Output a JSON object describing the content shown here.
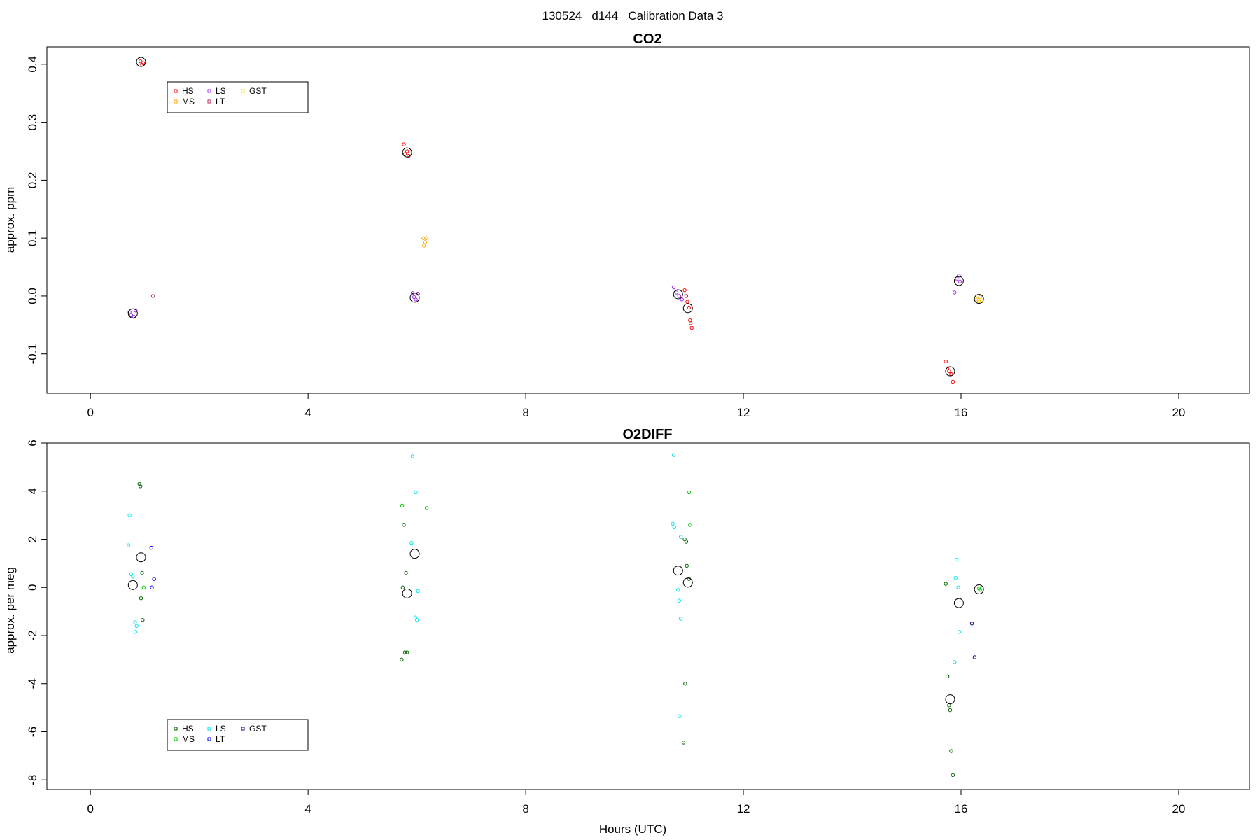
{
  "page": {
    "title": "130524   d144   Calibration Data 3",
    "xlabel": "Hours (UTC)"
  },
  "chart_data": [
    {
      "type": "scatter",
      "title": "CO2",
      "xlabel": "",
      "ylabel": "approx. ppm",
      "xlim": [
        -0.8,
        21.3
      ],
      "ylim": [
        -0.168,
        0.43
      ],
      "x_ticks": [
        0,
        4,
        8,
        12,
        16,
        20
      ],
      "y_ticks": [
        -0.1,
        0.0,
        0.1,
        0.2,
        0.3,
        0.4
      ],
      "y_tick_labels": [
        "-0.1",
        "0.0",
        "0.1",
        "0.2",
        "0.3",
        "0.4"
      ],
      "legend": {
        "position": "top-left",
        "entries": [
          {
            "label": "HS",
            "color": "#ff0000"
          },
          {
            "label": "MS",
            "color": "#ffa500"
          },
          {
            "label": "GST",
            "color": "#ffd700"
          },
          {
            "label": "LS",
            "color": "#a020f0"
          },
          {
            "label": "LT",
            "color": "#b03060"
          }
        ]
      },
      "series": [
        {
          "name": "HS",
          "color": "#ff0000",
          "points": [
            [
              0.92,
              0.405
            ],
            [
              0.95,
              0.399
            ],
            [
              0.97,
              0.402
            ],
            [
              5.76,
              0.262
            ],
            [
              5.78,
              0.245
            ],
            [
              5.82,
              0.25
            ],
            [
              5.85,
              0.242
            ],
            [
              10.92,
              0.01
            ],
            [
              10.95,
              0.0
            ],
            [
              10.97,
              -0.01
            ],
            [
              11.0,
              -0.02
            ],
            [
              11.02,
              -0.042
            ],
            [
              11.05,
              -0.055
            ],
            [
              11.03,
              -0.047
            ],
            [
              15.72,
              -0.113
            ],
            [
              15.75,
              -0.125
            ],
            [
              15.78,
              -0.13
            ],
            [
              15.82,
              -0.135
            ],
            [
              15.85,
              -0.148
            ]
          ]
        },
        {
          "name": "MS",
          "color": "#ffa500",
          "points": [
            [
              6.12,
              0.1
            ],
            [
              6.15,
              0.093
            ],
            [
              6.17,
              0.1
            ],
            [
              6.13,
              0.087
            ],
            [
              16.3,
              -0.006
            ],
            [
              16.35,
              -0.002
            ],
            [
              16.38,
              -0.009
            ]
          ]
        },
        {
          "name": "GST",
          "color": "#ffd700",
          "points": [
            [
              16.28,
              -0.004
            ],
            [
              16.33,
              -0.009
            ]
          ]
        },
        {
          "name": "LS",
          "color": "#a020f0",
          "points": [
            [
              0.72,
              -0.028
            ],
            [
              0.75,
              -0.033
            ],
            [
              0.8,
              -0.036
            ],
            [
              0.83,
              -0.025
            ],
            [
              5.92,
              0.005
            ],
            [
              5.95,
              -0.002
            ],
            [
              5.98,
              -0.006
            ],
            [
              6.02,
              0.004
            ],
            [
              10.72,
              0.015
            ],
            [
              10.77,
              0.006
            ],
            [
              10.82,
              0.0
            ],
            [
              10.87,
              -0.006
            ],
            [
              15.88,
              0.006
            ],
            [
              15.92,
              0.03
            ],
            [
              15.96,
              0.035
            ],
            [
              15.98,
              0.025
            ]
          ]
        },
        {
          "name": "LT",
          "color": "#b03060",
          "points": [
            [
              1.15,
              0.0
            ]
          ]
        }
      ],
      "means": [
        [
          0.93,
          0.404
        ],
        [
          0.78,
          -0.03
        ],
        [
          5.82,
          0.248
        ],
        [
          5.96,
          -0.003
        ],
        [
          10.8,
          0.003
        ],
        [
          10.98,
          -0.021
        ],
        [
          15.8,
          -0.13
        ],
        [
          15.96,
          0.026
        ],
        [
          16.33,
          -0.005
        ]
      ]
    },
    {
      "type": "scatter",
      "title": "O2DIFF",
      "xlabel": "Hours (UTC)",
      "ylabel": "approx. per meg",
      "xlim": [
        -0.8,
        21.3
      ],
      "ylim": [
        -8.4,
        6.0
      ],
      "x_ticks": [
        0,
        4,
        8,
        12,
        16,
        20
      ],
      "y_ticks": [
        -8,
        -6,
        -4,
        -2,
        0,
        2,
        4,
        6
      ],
      "y_tick_labels": [
        "-8",
        "-6",
        "-4",
        "-2",
        "0",
        "2",
        "4",
        "6"
      ],
      "legend": {
        "position": "bottom-left",
        "entries": [
          {
            "label": "HS",
            "color": "#006400"
          },
          {
            "label": "MS",
            "color": "#00cd00"
          },
          {
            "label": "GST",
            "color": "#00008b"
          },
          {
            "label": "LS",
            "color": "#00e5ee"
          },
          {
            "label": "LT",
            "color": "#0000ff"
          }
        ]
      },
      "series": [
        {
          "name": "HS",
          "color": "#006400",
          "points": [
            [
              0.9,
              4.3
            ],
            [
              0.92,
              4.2
            ],
            [
              0.95,
              0.6
            ],
            [
              0.93,
              -0.45
            ],
            [
              0.96,
              -1.35
            ],
            [
              5.72,
              -3.0
            ],
            [
              5.78,
              -2.7
            ],
            [
              5.82,
              -2.7
            ],
            [
              5.76,
              2.6
            ],
            [
              5.74,
              0.0
            ],
            [
              5.8,
              0.6
            ],
            [
              10.92,
              2.0
            ],
            [
              10.95,
              1.9
            ],
            [
              10.96,
              0.9
            ],
            [
              10.93,
              -4.0
            ],
            [
              10.9,
              -6.45
            ],
            [
              11.0,
              0.35
            ],
            [
              15.72,
              0.15
            ],
            [
              15.75,
              -3.7
            ],
            [
              15.78,
              -4.9
            ],
            [
              15.8,
              -5.1
            ],
            [
              15.82,
              -6.8
            ],
            [
              15.85,
              -7.8
            ]
          ]
        },
        {
          "name": "MS",
          "color": "#00cd00",
          "points": [
            [
              0.98,
              0.0
            ],
            [
              5.73,
              3.4
            ],
            [
              6.18,
              3.3
            ],
            [
              11.02,
              2.6
            ],
            [
              11.0,
              3.95
            ],
            [
              16.33,
              -0.05
            ],
            [
              16.35,
              -0.1
            ]
          ]
        },
        {
          "name": "GST",
          "color": "#00008b",
          "points": [
            [
              16.25,
              -2.9
            ],
            [
              16.2,
              -1.5
            ]
          ]
        },
        {
          "name": "LS",
          "color": "#00e5ee",
          "points": [
            [
              0.72,
              3.0
            ],
            [
              0.7,
              1.75
            ],
            [
              0.75,
              0.55
            ],
            [
              0.78,
              0.45
            ],
            [
              0.82,
              -1.45
            ],
            [
              0.85,
              -1.6
            ],
            [
              0.83,
              -1.85
            ],
            [
              5.92,
              5.45
            ],
            [
              5.98,
              3.95
            ],
            [
              5.9,
              1.85
            ],
            [
              6.02,
              -0.15
            ],
            [
              5.97,
              -1.25
            ],
            [
              6.0,
              -1.35
            ],
            [
              10.72,
              5.5
            ],
            [
              10.7,
              2.65
            ],
            [
              10.73,
              2.5
            ],
            [
              10.85,
              2.1
            ],
            [
              10.8,
              -0.1
            ],
            [
              10.82,
              -0.55
            ],
            [
              10.85,
              -1.3
            ],
            [
              10.83,
              -5.35
            ],
            [
              15.92,
              1.15
            ],
            [
              15.9,
              0.4
            ],
            [
              15.95,
              0.0
            ],
            [
              15.97,
              -1.85
            ],
            [
              15.88,
              -3.1
            ]
          ]
        },
        {
          "name": "LT",
          "color": "#0000ff",
          "points": [
            [
              1.12,
              1.65
            ],
            [
              1.17,
              0.35
            ],
            [
              1.13,
              0.0
            ]
          ]
        }
      ],
      "means": [
        [
          0.93,
          1.25
        ],
        [
          0.78,
          0.1
        ],
        [
          5.82,
          -0.25
        ],
        [
          5.96,
          1.4
        ],
        [
          10.8,
          0.7
        ],
        [
          10.98,
          0.2
        ],
        [
          15.8,
          -4.65
        ],
        [
          15.96,
          -0.65
        ],
        [
          16.33,
          -0.08
        ]
      ]
    }
  ]
}
